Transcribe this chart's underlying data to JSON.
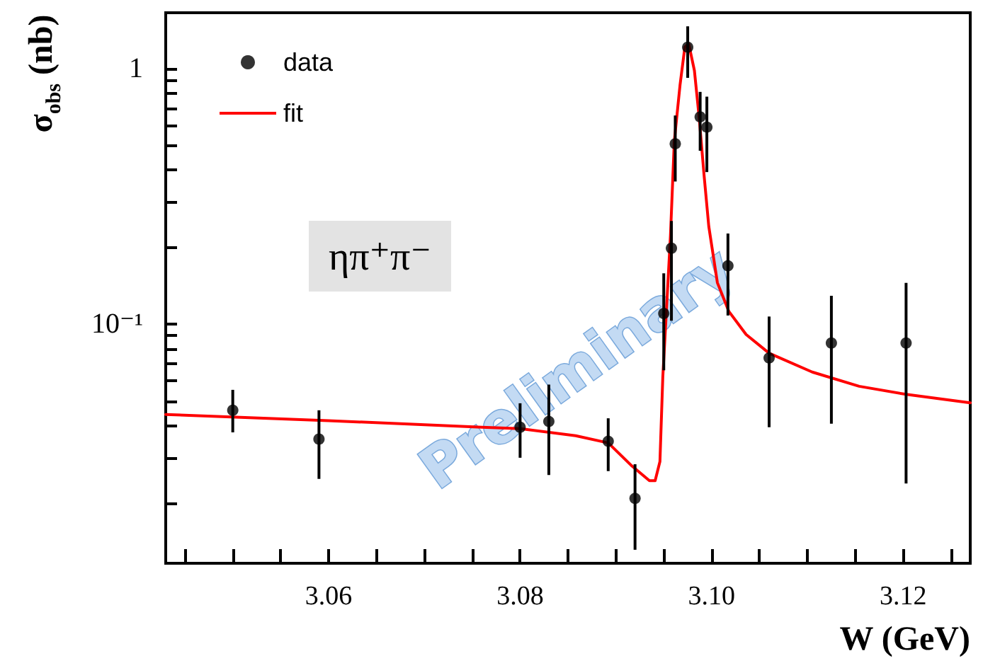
{
  "chart_data": {
    "type": "scatter",
    "xlabel": "W (GeV)",
    "ylabel": "σ$_{obs}$ (nb)",
    "annotations": [
      "ηπ⁺π⁻",
      "Preliminary"
    ],
    "xlim": [
      3.043,
      3.127
    ],
    "xticks": [
      {
        "value": 3.045,
        "label": null
      },
      {
        "value": 3.05,
        "label": null
      },
      {
        "value": 3.055,
        "label": null
      },
      {
        "value": 3.06,
        "label": "3.06"
      },
      {
        "value": 3.065,
        "label": null
      },
      {
        "value": 3.07,
        "label": null
      },
      {
        "value": 3.075,
        "label": null
      },
      {
        "value": 3.08,
        "label": "3.08"
      },
      {
        "value": 3.085,
        "label": null
      },
      {
        "value": 3.09,
        "label": null
      },
      {
        "value": 3.095,
        "label": null
      },
      {
        "value": 3.1,
        "label": "3.10"
      },
      {
        "value": 3.105,
        "label": null
      },
      {
        "value": 3.11,
        "label": null
      },
      {
        "value": 3.115,
        "label": null
      },
      {
        "value": 3.12,
        "label": "3.12"
      },
      {
        "value": 3.125,
        "label": null
      }
    ],
    "ylim": [
      0.0116,
      1.65
    ],
    "yticks": [
      {
        "value": 0.02,
        "label": null
      },
      {
        "value": 0.03,
        "label": null
      },
      {
        "value": 0.04,
        "label": null
      },
      {
        "value": 0.05,
        "label": null
      },
      {
        "value": 0.06,
        "label": null
      },
      {
        "value": 0.07,
        "label": null
      },
      {
        "value": 0.08,
        "label": null
      },
      {
        "value": 0.09,
        "label": null
      },
      {
        "value": 0.1,
        "label": "10⁻¹"
      },
      {
        "value": 0.2,
        "label": null
      },
      {
        "value": 0.3,
        "label": null
      },
      {
        "value": 0.4,
        "label": null
      },
      {
        "value": 0.5,
        "label": null
      },
      {
        "value": 0.6,
        "label": null
      },
      {
        "value": 0.7,
        "label": null
      },
      {
        "value": 0.8,
        "label": null
      },
      {
        "value": 0.9,
        "label": null
      },
      {
        "value": 1,
        "label": "1"
      }
    ],
    "log": "y",
    "grid": false,
    "legend": "top left",
    "marker": "circle",
    "series": [
      {
        "name": "data",
        "color": "#000000",
        "x": [
          3.05,
          3.059,
          3.08,
          3.083,
          3.0892,
          3.092,
          3.095,
          3.0958,
          3.0962,
          3.0975,
          3.0988,
          3.0995,
          3.1017,
          3.106,
          3.1125,
          3.1203
        ],
        "values": [
          0.046,
          0.0355,
          0.0395,
          0.0416,
          0.0348,
          0.0208,
          0.11,
          0.198,
          0.507,
          1.21,
          0.646,
          0.589,
          0.169,
          0.0737,
          0.0843,
          0.0843
        ],
        "errors": [
          [
            0.0377,
            0.0553
          ],
          [
            0.0248,
            0.046
          ],
          [
            0.03,
            0.049
          ],
          [
            0.0257,
            0.058
          ],
          [
            0.0266,
            0.0428
          ],
          [
            0.0131,
            0.0283
          ],
          [
            0.066,
            0.158
          ],
          [
            0.103,
            0.253
          ],
          [
            0.361,
            0.654
          ],
          [
            0.918,
            1.46
          ],
          [
            0.476,
            0.809
          ],
          [
            0.393,
            0.775
          ],
          [
            0.108,
            0.226
          ],
          [
            0.0395,
            0.107
          ],
          [
            0.0408,
            0.129
          ],
          [
            0.0238,
            0.145
          ]
        ]
      },
      {
        "name": "fit",
        "type": "line",
        "color": "#ff0000",
        "marker": "none",
        "line_style": "solid",
        "x": [
          3.043,
          3.06,
          3.076,
          3.08,
          3.0858,
          3.0892,
          3.0917,
          3.0935,
          3.0941,
          3.0946,
          3.0949,
          3.0953,
          3.0957,
          3.0961,
          3.0967,
          3.0972,
          3.0976,
          3.0982,
          3.0987,
          3.0992,
          3.0997,
          3.1006,
          3.1018,
          3.1036,
          3.106,
          3.1105,
          3.1154,
          3.1203,
          3.127
        ],
        "values": [
          0.0443,
          0.0419,
          0.0395,
          0.039,
          0.0366,
          0.0343,
          0.0278,
          0.0244,
          0.0244,
          0.029,
          0.0621,
          0.117,
          0.222,
          0.518,
          0.861,
          1.21,
          1.25,
          0.98,
          0.64,
          0.385,
          0.241,
          0.145,
          0.112,
          0.091,
          0.0769,
          0.0649,
          0.0571,
          0.0531,
          0.0492
        ]
      }
    ]
  }
}
